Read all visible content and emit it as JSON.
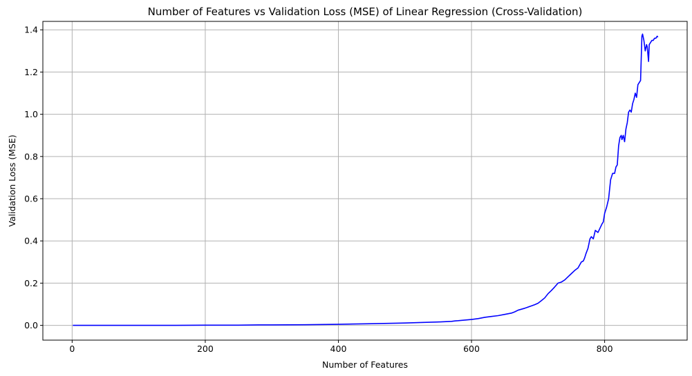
{
  "chart_data": {
    "type": "line",
    "title": "Number of Features vs Validation Loss (MSE) of Linear Regression (Cross-Validation)",
    "xlabel": "Number of Features",
    "ylabel": "Validation Loss (MSE)",
    "xlim": [
      -44,
      924
    ],
    "ylim": [
      -0.07,
      1.44
    ],
    "xticks": [
      0,
      200,
      400,
      600,
      800
    ],
    "yticks": [
      0.0,
      0.2,
      0.4,
      0.6,
      0.8,
      1.0,
      1.2,
      1.4
    ],
    "grid": true,
    "colors": {
      "line": "#0000ff",
      "grid": "#b0b0b0",
      "axes": "#000000"
    },
    "series": [
      {
        "x": [
          1,
          50,
          100,
          150,
          200,
          250,
          280,
          300,
          350,
          400,
          450,
          500,
          520,
          550,
          570,
          575,
          580,
          590,
          600,
          610,
          620,
          630,
          640,
          650,
          660,
          665,
          670,
          680,
          690,
          695,
          700,
          705,
          710,
          715,
          720,
          725,
          730,
          735,
          740,
          745,
          750,
          755,
          760,
          765,
          768,
          770,
          772,
          775,
          778,
          780,
          783,
          786,
          790,
          793,
          796,
          798,
          800,
          803,
          806,
          809,
          812,
          815,
          817,
          819,
          821,
          823,
          825,
          826,
          828,
          830,
          832,
          834,
          836,
          838,
          840,
          842,
          844,
          846,
          848,
          850,
          852,
          854,
          856,
          857,
          859,
          861,
          863,
          864,
          866,
          867,
          869,
          871,
          873,
          875,
          877,
          879,
          880
        ],
        "values": [
          0.0,
          0.0,
          0.0,
          0.0,
          0.001,
          0.001,
          0.002,
          0.002,
          0.003,
          0.005,
          0.008,
          0.011,
          0.013,
          0.016,
          0.019,
          0.021,
          0.022,
          0.025,
          0.028,
          0.032,
          0.038,
          0.042,
          0.046,
          0.052,
          0.058,
          0.064,
          0.072,
          0.081,
          0.092,
          0.098,
          0.105,
          0.117,
          0.13,
          0.15,
          0.165,
          0.182,
          0.2,
          0.205,
          0.215,
          0.23,
          0.245,
          0.26,
          0.272,
          0.3,
          0.305,
          0.32,
          0.34,
          0.365,
          0.41,
          0.42,
          0.41,
          0.45,
          0.44,
          0.46,
          0.48,
          0.49,
          0.53,
          0.56,
          0.6,
          0.69,
          0.72,
          0.72,
          0.75,
          0.76,
          0.85,
          0.89,
          0.9,
          0.88,
          0.9,
          0.87,
          0.93,
          0.96,
          1.01,
          1.02,
          1.01,
          1.05,
          1.07,
          1.1,
          1.08,
          1.14,
          1.15,
          1.16,
          1.37,
          1.38,
          1.35,
          1.3,
          1.33,
          1.32,
          1.25,
          1.33,
          1.34,
          1.35,
          1.35,
          1.36,
          1.36,
          1.37,
          1.365
        ]
      }
    ]
  }
}
